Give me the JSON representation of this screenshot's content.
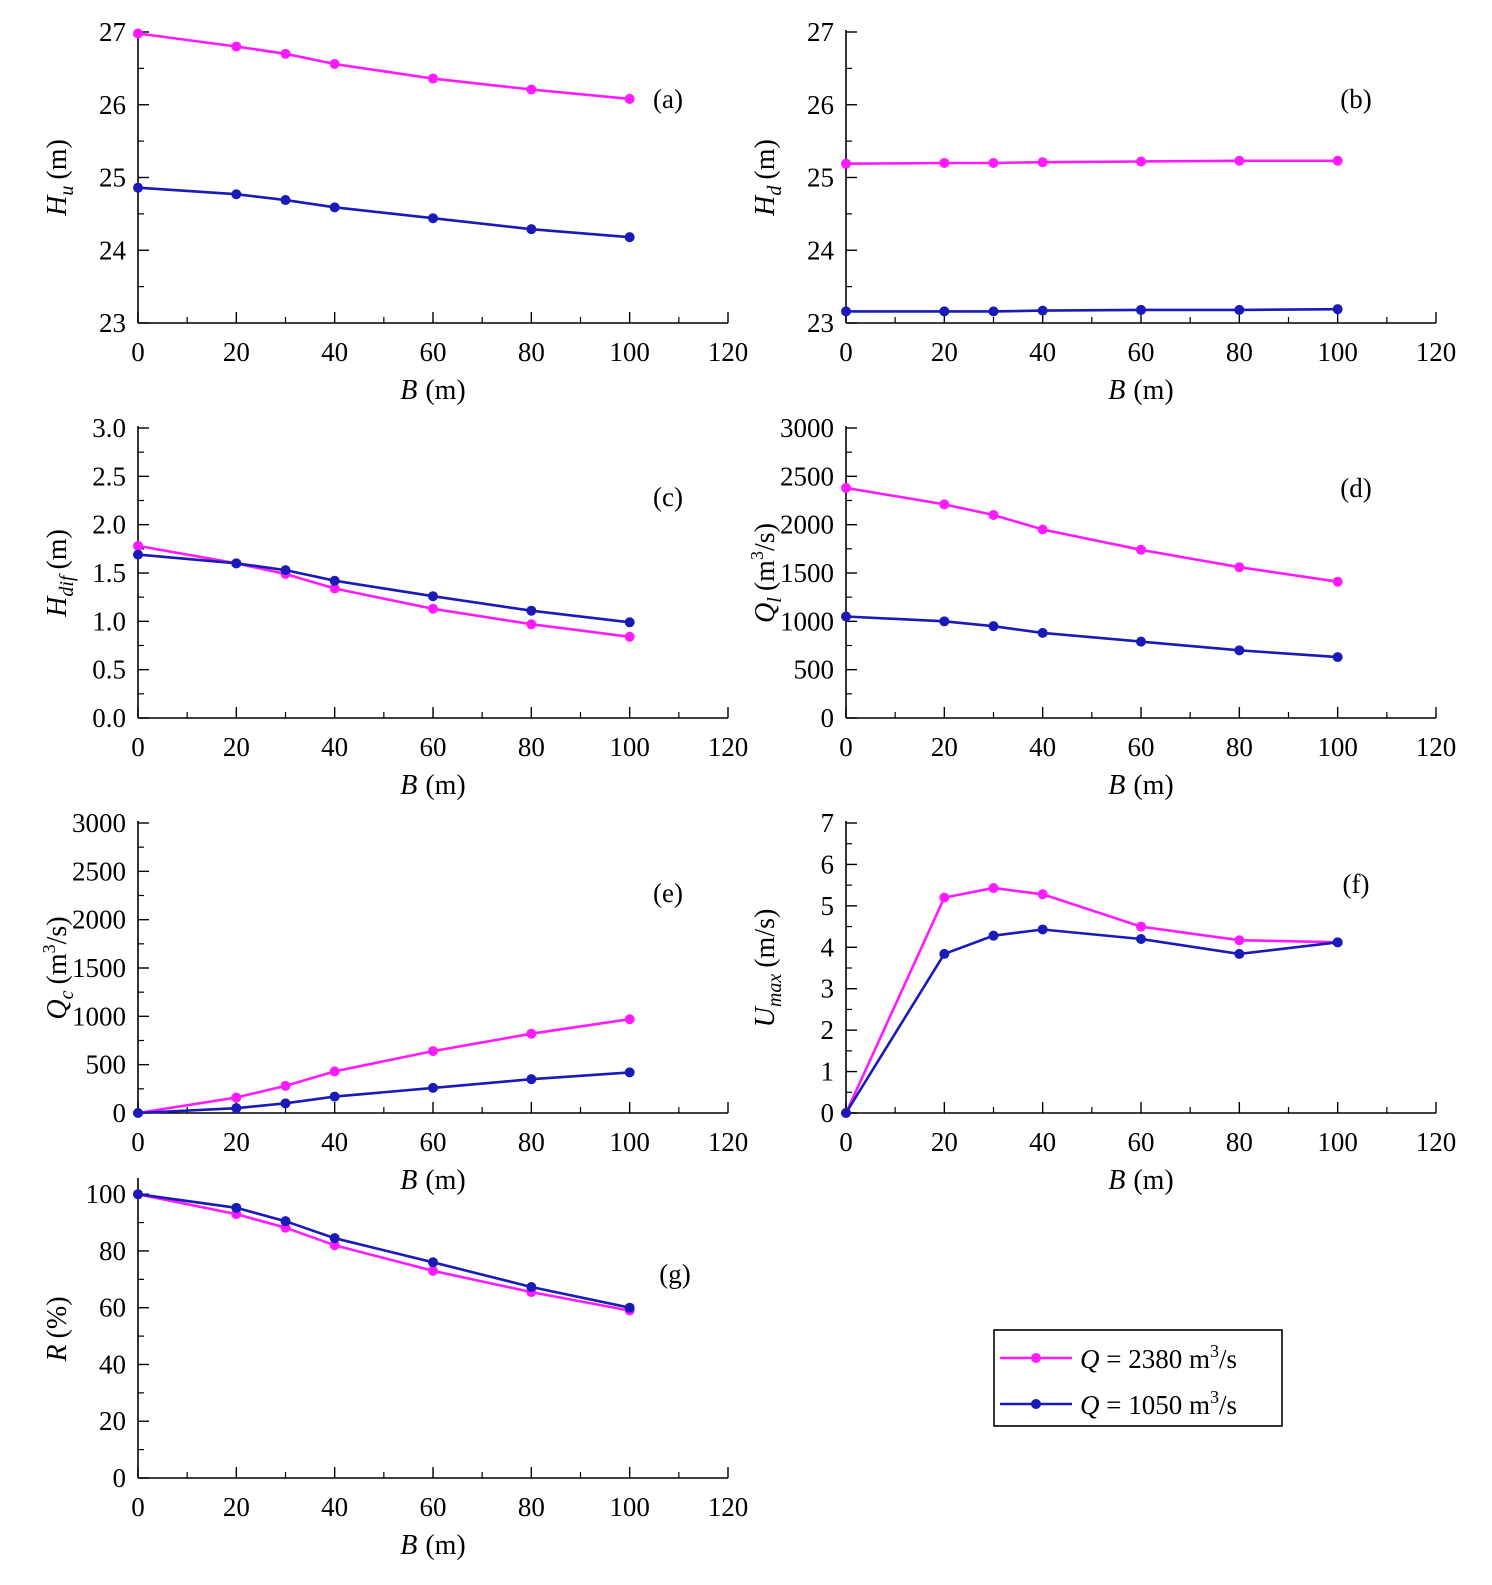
{
  "chart_data": [
    {
      "panel": "(a)",
      "type": "line",
      "xlabel": "B (m)",
      "ylabel": "H_u (m)",
      "xlim": [
        0,
        120
      ],
      "ylim": [
        23,
        27
      ],
      "xticks": [
        0,
        20,
        40,
        60,
        80,
        100,
        120
      ],
      "yticks": [
        23,
        24,
        25,
        26,
        27
      ],
      "x": [
        0,
        20,
        30,
        40,
        60,
        80,
        100
      ],
      "series": [
        {
          "name": "Q = 2380 m3/s",
          "values": [
            26.98,
            26.8,
            26.7,
            26.56,
            26.36,
            26.21,
            26.08
          ]
        },
        {
          "name": "Q = 1050 m3/s",
          "values": [
            24.86,
            24.77,
            24.69,
            24.59,
            24.44,
            24.29,
            24.18
          ]
        }
      ]
    },
    {
      "panel": "(b)",
      "type": "line",
      "xlabel": "B (m)",
      "ylabel": "H_d (m)",
      "xlim": [
        0,
        120
      ],
      "ylim": [
        23,
        27
      ],
      "xticks": [
        0,
        20,
        40,
        60,
        80,
        100,
        120
      ],
      "yticks": [
        23,
        24,
        25,
        26,
        27
      ],
      "x": [
        0,
        20,
        30,
        40,
        60,
        80,
        100
      ],
      "series": [
        {
          "name": "Q = 2380 m3/s",
          "values": [
            25.19,
            25.2,
            25.2,
            25.21,
            25.22,
            25.23,
            25.23
          ]
        },
        {
          "name": "Q = 1050 m3/s",
          "values": [
            23.16,
            23.16,
            23.16,
            23.17,
            23.18,
            23.18,
            23.19
          ]
        }
      ]
    },
    {
      "panel": "(c)",
      "type": "line",
      "xlabel": "B (m)",
      "ylabel": "H_dif (m)",
      "xlim": [
        0,
        120
      ],
      "ylim": [
        0,
        3
      ],
      "xticks": [
        0,
        20,
        40,
        60,
        80,
        100,
        120
      ],
      "yticks": [
        0,
        0.5,
        1.0,
        1.5,
        2.0,
        2.5,
        3.0
      ],
      "ytick_labels": [
        "0.0",
        "0.5",
        "1.0",
        "1.5",
        "2.0",
        "2.5",
        "3.0"
      ],
      "x": [
        0,
        20,
        30,
        40,
        60,
        80,
        100
      ],
      "series": [
        {
          "name": "Q = 2380 m3/s",
          "values": [
            1.78,
            1.6,
            1.49,
            1.34,
            1.13,
            0.97,
            0.84
          ]
        },
        {
          "name": "Q = 1050 m3/s",
          "values": [
            1.69,
            1.6,
            1.53,
            1.42,
            1.26,
            1.11,
            0.99
          ]
        }
      ]
    },
    {
      "panel": "(d)",
      "type": "line",
      "xlabel": "B (m)",
      "ylabel": "Q_l (m3/s)",
      "xlim": [
        0,
        120
      ],
      "ylim": [
        0,
        3000
      ],
      "xticks": [
        0,
        20,
        40,
        60,
        80,
        100,
        120
      ],
      "yticks": [
        0,
        500,
        1000,
        1500,
        2000,
        2500,
        3000
      ],
      "x": [
        0,
        20,
        30,
        40,
        60,
        80,
        100
      ],
      "series": [
        {
          "name": "Q = 2380 m3/s",
          "values": [
            2380,
            2210,
            2100,
            1950,
            1740,
            1560,
            1410
          ]
        },
        {
          "name": "Q = 1050 m3/s",
          "values": [
            1050,
            1000,
            950,
            880,
            790,
            700,
            630
          ]
        }
      ]
    },
    {
      "panel": "(e)",
      "type": "line",
      "xlabel": "B (m)",
      "ylabel": "Q_c (m3/s)",
      "xlim": [
        0,
        120
      ],
      "ylim": [
        0,
        3000
      ],
      "xticks": [
        0,
        20,
        40,
        60,
        80,
        100,
        120
      ],
      "yticks": [
        0,
        500,
        1000,
        1500,
        2000,
        2500,
        3000
      ],
      "x": [
        0,
        20,
        30,
        40,
        60,
        80,
        100
      ],
      "series": [
        {
          "name": "Q = 2380 m3/s",
          "values": [
            0,
            160,
            280,
            430,
            640,
            820,
            970
          ]
        },
        {
          "name": "Q = 1050 m3/s",
          "values": [
            0,
            50,
            100,
            170,
            260,
            350,
            420
          ]
        }
      ]
    },
    {
      "panel": "(f)",
      "type": "line",
      "xlabel": "B (m)",
      "ylabel": "U_max (m/s)",
      "xlim": [
        0,
        120
      ],
      "ylim": [
        0,
        7
      ],
      "xticks": [
        0,
        20,
        40,
        60,
        80,
        100,
        120
      ],
      "yticks": [
        0,
        1,
        2,
        3,
        4,
        5,
        6,
        7
      ],
      "x": [
        0,
        20,
        30,
        40,
        60,
        80,
        100
      ],
      "series": [
        {
          "name": "Q = 2380 m3/s",
          "values": [
            0,
            5.2,
            5.43,
            5.28,
            4.5,
            4.17,
            4.12
          ]
        },
        {
          "name": "Q = 1050 m3/s",
          "values": [
            0,
            3.84,
            4.28,
            4.43,
            4.2,
            3.84,
            4.12
          ]
        }
      ]
    },
    {
      "panel": "(g)",
      "type": "line",
      "xlabel": "B (m)",
      "ylabel": "R (%)",
      "xlim": [
        0,
        120
      ],
      "ylim": [
        0,
        105
      ],
      "xticks": [
        0,
        20,
        40,
        60,
        80,
        100,
        120
      ],
      "yticks": [
        0,
        20,
        40,
        60,
        80,
        100
      ],
      "x": [
        0,
        20,
        30,
        40,
        60,
        80,
        100
      ],
      "series": [
        {
          "name": "Q = 2380 m3/s",
          "values": [
            100,
            93,
            88.2,
            82,
            73,
            65.5,
            59
          ]
        },
        {
          "name": "Q = 1050 m3/s",
          "values": [
            100,
            95.2,
            90.5,
            84.5,
            76,
            67.3,
            60
          ]
        }
      ]
    }
  ],
  "legend": {
    "items": [
      {
        "name": "Q = 2380 m3/s",
        "color": "#ff1aff"
      },
      {
        "name": "Q = 1050 m3/s",
        "color": "#1a1ab8"
      }
    ]
  },
  "colors": {
    "series": [
      "#ff1aff",
      "#1a1ab8"
    ]
  }
}
